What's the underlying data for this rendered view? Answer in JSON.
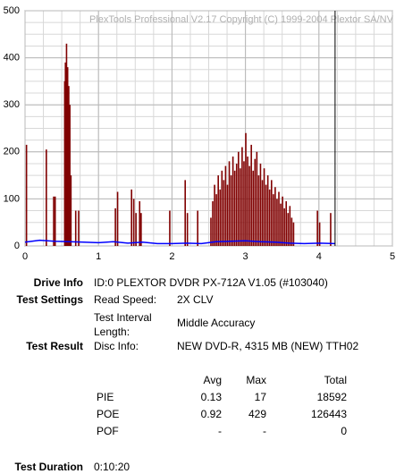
{
  "chart_data": {
    "type": "bar",
    "watermark": "PlexTools Professional V2.17 Copyright (C) 1999-2004 Plextor SA/NV",
    "xlim": [
      0,
      5
    ],
    "xticks": [
      0,
      1,
      2,
      3,
      4,
      5
    ],
    "ylim": [
      0,
      500
    ],
    "yticks": [
      0,
      100,
      200,
      300,
      400,
      500
    ],
    "grid": true,
    "cursor_x": 4.22,
    "series": [
      {
        "type": "bar",
        "color": "#800000",
        "x": [
          0.02,
          0.29,
          0.39,
          0.41,
          0.54,
          0.55,
          0.565,
          0.58,
          0.595,
          0.61,
          0.625,
          0.69,
          0.73,
          1.23,
          1.26,
          1.45,
          1.48,
          1.51,
          1.56,
          1.58,
          1.97,
          2.18,
          2.21,
          2.35,
          2.53,
          2.555,
          2.58,
          2.605,
          2.63,
          2.655,
          2.68,
          2.705,
          2.73,
          2.755,
          2.78,
          2.805,
          2.83,
          2.855,
          2.88,
          2.905,
          2.93,
          2.955,
          2.98,
          3.005,
          3.03,
          3.055,
          3.08,
          3.105,
          3.13,
          3.155,
          3.18,
          3.205,
          3.23,
          3.255,
          3.28,
          3.305,
          3.33,
          3.355,
          3.38,
          3.405,
          3.43,
          3.455,
          3.48,
          3.505,
          3.53,
          3.555,
          3.58,
          3.605,
          3.63,
          3.655,
          3.98,
          4.01,
          4.16
        ],
        "values": [
          215,
          205,
          105,
          105,
          350,
          390,
          430,
          380,
          340,
          300,
          150,
          75,
          75,
          80,
          115,
          120,
          100,
          70,
          95,
          70,
          75,
          140,
          70,
          75,
          60,
          95,
          130,
          110,
          150,
          120,
          160,
          140,
          170,
          130,
          180,
          150,
          190,
          160,
          175,
          200,
          165,
          210,
          180,
          240,
          190,
          170,
          215,
          160,
          185,
          200,
          150,
          175,
          140,
          165,
          130,
          150,
          120,
          140,
          110,
          125,
          100,
          115,
          90,
          105,
          80,
          95,
          70,
          85,
          60,
          50,
          75,
          50,
          70
        ]
      },
      {
        "type": "line",
        "color": "#0000ff",
        "x": [
          0,
          0.2,
          0.4,
          0.6,
          0.8,
          1.0,
          1.2,
          1.4,
          1.6,
          1.8,
          2.0,
          2.2,
          2.4,
          2.6,
          2.8,
          3.0,
          3.2,
          3.4,
          3.6,
          3.8,
          4.0,
          4.22
        ],
        "values": [
          8,
          12,
          10,
          9,
          8,
          7,
          9,
          6,
          8,
          5,
          5,
          6,
          5,
          9,
          10,
          11,
          9,
          8,
          6,
          5,
          6,
          5
        ]
      }
    ]
  },
  "info": {
    "drive_label": "Drive Info",
    "drive_value": "ID:0 PLEXTOR DVDR PX-712A V1.05 (#103040)",
    "settings_label": "Test Settings",
    "read_speed_label": "Read Speed:",
    "read_speed_value": "2X CLV",
    "interval_label": "Test Interval Length:",
    "interval_value": "Middle Accuracy",
    "result_label": "Test Result",
    "disc_label": "Disc Info:",
    "disc_value": "NEW DVD-R, 4315 MB (NEW) TTH02",
    "table": {
      "header": [
        "Avg",
        "Max",
        "Total"
      ],
      "rows": [
        [
          "PIE",
          "0.13",
          "17",
          "18592"
        ],
        [
          "POE",
          "0.92",
          "429",
          "126443"
        ],
        [
          "POF",
          "-",
          "-",
          "0"
        ]
      ]
    },
    "duration_label": "Test Duration",
    "duration_value": "0:10:20"
  }
}
